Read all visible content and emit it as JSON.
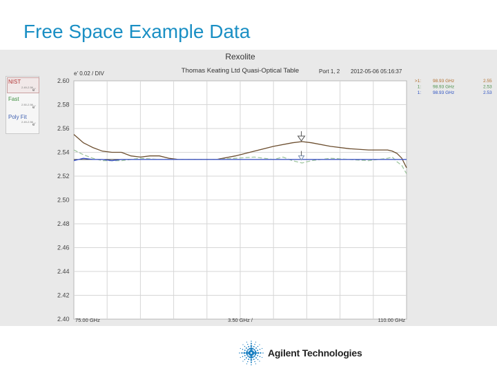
{
  "slide": {
    "title": "Free Space Example Data"
  },
  "legend_panel": {
    "items": [
      {
        "label": "NIST",
        "range": "2.49-2.56",
        "symbol": "e'",
        "color": "#b03030"
      },
      {
        "label": "Fast",
        "range": "2.50-2.56",
        "symbol": "e'",
        "color": "#3f8f3f"
      },
      {
        "label": "Poly Fit",
        "range": "2.49-2.56",
        "symbol": "e'",
        "color": "#3e5fb0"
      }
    ]
  },
  "chart_data": {
    "type": "line",
    "title": "Rexolite",
    "subtitle": "Thomas Keating Ltd Quasi-Optical Table",
    "port_label": "Port 1, 2",
    "timestamp": "2012-05-06 05:16:37",
    "scale_label": "e' 0.02 / DIV",
    "x_start_label": "75.00 GHz",
    "x_div_label": "3.50 GHz /",
    "x_end_label": "110.00 GHz",
    "xlim": [
      75,
      110
    ],
    "ylim": [
      2.4,
      2.6
    ],
    "yticks": [
      "2.60",
      "2.58",
      "2.56",
      "2.54",
      "2.52",
      "2.50",
      "2.48",
      "2.46",
      "2.44",
      "2.42",
      "2.40"
    ],
    "grid": true,
    "marker_x": 98.93,
    "marker_readout": [
      {
        "id": ">1:",
        "freq": "98.93 GHz",
        "value": "2.55",
        "color": "#b06b2a"
      },
      {
        "id": "1:",
        "freq": "98.93 GHz",
        "value": "2.53",
        "color": "#4a8f4a"
      },
      {
        "id": "1:",
        "freq": "98.93 GHz",
        "value": "2.53",
        "color": "#2a4fc0"
      }
    ],
    "series": [
      {
        "color": "#6b4d2e",
        "style": "solid",
        "x": [
          75,
          76,
          77,
          78,
          79,
          80,
          81,
          82,
          83,
          84,
          85,
          86,
          88,
          90,
          92,
          94,
          96,
          98,
          99,
          100,
          102,
          104,
          106,
          107,
          108,
          108.5,
          109,
          109.5,
          110
        ],
        "y": [
          2.555,
          2.548,
          2.544,
          2.541,
          2.54,
          2.54,
          2.537,
          2.536,
          2.537,
          2.537,
          2.535,
          2.534,
          2.534,
          2.534,
          2.537,
          2.541,
          2.545,
          2.548,
          2.549,
          2.548,
          2.545,
          2.543,
          2.542,
          2.542,
          2.542,
          2.541,
          2.539,
          2.535,
          2.527
        ]
      },
      {
        "color": "#9fc59f",
        "style": "dashed",
        "x": [
          75,
          76,
          77,
          78,
          80,
          82,
          84,
          86,
          88,
          90,
          92,
          94,
          96,
          97,
          98,
          99,
          100,
          102,
          104,
          106,
          107,
          108,
          108.5,
          109,
          109.5,
          110
        ],
        "y": [
          2.542,
          2.538,
          2.535,
          2.533,
          2.533,
          2.535,
          2.534,
          2.534,
          2.534,
          2.534,
          2.535,
          2.536,
          2.534,
          2.536,
          2.533,
          2.531,
          2.533,
          2.535,
          2.534,
          2.533,
          2.534,
          2.535,
          2.536,
          2.532,
          2.529,
          2.522
        ]
      },
      {
        "color": "#3850c8",
        "style": "solid",
        "x": [
          75,
          76,
          77,
          78,
          79,
          80,
          82,
          84,
          86,
          88,
          90,
          92,
          94,
          96,
          98,
          100,
          102,
          104,
          106,
          107,
          108,
          109,
          110
        ],
        "y": [
          2.533,
          2.535,
          2.534,
          2.534,
          2.533,
          2.534,
          2.534,
          2.534,
          2.534,
          2.534,
          2.534,
          2.534,
          2.534,
          2.534,
          2.534,
          2.534,
          2.534,
          2.534,
          2.534,
          2.534,
          2.534,
          2.534,
          2.534
        ]
      }
    ]
  },
  "brand": {
    "name": "Agilent Technologies"
  }
}
